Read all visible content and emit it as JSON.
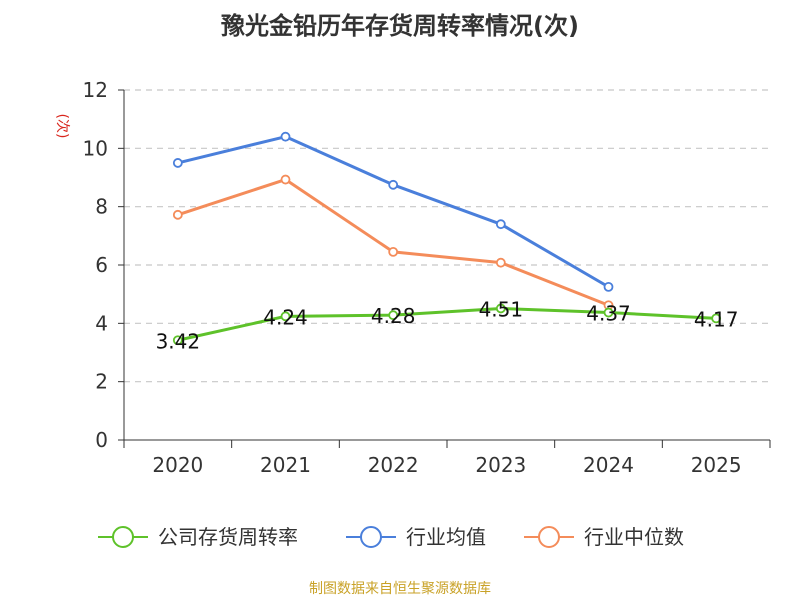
{
  "title": "豫光金铅历年存货周转率情况(次)",
  "source_note": "制图数据来自恒生聚源数据库",
  "colors": {
    "company": "#5ec22a",
    "industry_avg": "#4a7fdb",
    "industry_median": "#f48c5a",
    "grid": "#c8c8c8",
    "axis": "#333333"
  },
  "chart_data": {
    "type": "line",
    "title": "豫光金铅历年存货周转率情况(次)",
    "ylabel": "(次)",
    "xlabel": "",
    "categories": [
      "2020",
      "2021",
      "2022",
      "2023",
      "2024",
      "2025"
    ],
    "ylim": [
      0,
      12
    ],
    "yticks": [
      0,
      2,
      4,
      6,
      8,
      10,
      12
    ],
    "grid": true,
    "legend": "bottom",
    "series": [
      {
        "key": "company",
        "name": "公司存货周转率",
        "values": [
          3.42,
          4.24,
          4.28,
          4.51,
          4.37,
          4.17
        ],
        "labels": [
          "3.42",
          "4.24",
          "4.28",
          "4.51",
          "4.37",
          "4.17"
        ]
      },
      {
        "key": "industry_avg",
        "name": "行业均值",
        "values": [
          9.5,
          10.4,
          8.75,
          7.4,
          5.25,
          null
        ]
      },
      {
        "key": "industry_median",
        "name": "行业中位数",
        "values": [
          7.72,
          8.93,
          6.45,
          6.08,
          4.62,
          null
        ]
      }
    ]
  }
}
